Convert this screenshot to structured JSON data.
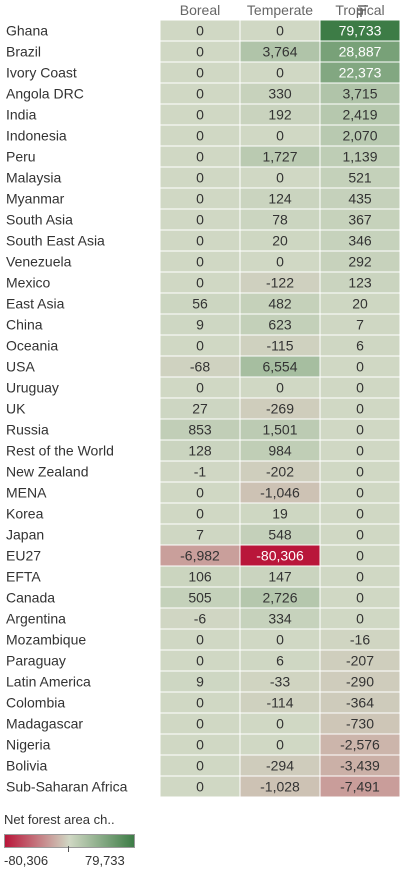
{
  "chart_data": {
    "type": "heatmap",
    "columns": [
      "Boreal",
      "Temperate",
      "Tropical"
    ],
    "rows": [
      {
        "name": "Ghana",
        "values": [
          0,
          0,
          79733
        ]
      },
      {
        "name": "Brazil",
        "values": [
          0,
          3764,
          28887
        ]
      },
      {
        "name": "Ivory Coast",
        "values": [
          0,
          0,
          22373
        ]
      },
      {
        "name": "Angola DRC",
        "values": [
          0,
          330,
          3715
        ]
      },
      {
        "name": "India",
        "values": [
          0,
          192,
          2419
        ]
      },
      {
        "name": "Indonesia",
        "values": [
          0,
          0,
          2070
        ]
      },
      {
        "name": "Peru",
        "values": [
          0,
          1727,
          1139
        ]
      },
      {
        "name": "Malaysia",
        "values": [
          0,
          0,
          521
        ]
      },
      {
        "name": "Myanmar",
        "values": [
          0,
          124,
          435
        ]
      },
      {
        "name": "South Asia",
        "values": [
          0,
          78,
          367
        ]
      },
      {
        "name": "South East Asia",
        "values": [
          0,
          20,
          346
        ]
      },
      {
        "name": "Venezuela",
        "values": [
          0,
          0,
          292
        ]
      },
      {
        "name": "Mexico",
        "values": [
          0,
          -122,
          123
        ]
      },
      {
        "name": "East Asia",
        "values": [
          56,
          482,
          20
        ]
      },
      {
        "name": "China",
        "values": [
          9,
          623,
          7
        ]
      },
      {
        "name": "Oceania",
        "values": [
          0,
          -115,
          6
        ]
      },
      {
        "name": "USA",
        "values": [
          -68,
          6554,
          0
        ]
      },
      {
        "name": "Uruguay",
        "values": [
          0,
          0,
          0
        ]
      },
      {
        "name": "UK",
        "values": [
          27,
          -269,
          0
        ]
      },
      {
        "name": "Russia",
        "values": [
          853,
          1501,
          0
        ]
      },
      {
        "name": "Rest of the World",
        "values": [
          128,
          984,
          0
        ]
      },
      {
        "name": "New Zealand",
        "values": [
          -1,
          -202,
          0
        ]
      },
      {
        "name": "MENA",
        "values": [
          0,
          -1046,
          0
        ]
      },
      {
        "name": "Korea",
        "values": [
          0,
          19,
          0
        ]
      },
      {
        "name": "Japan",
        "values": [
          7,
          548,
          0
        ]
      },
      {
        "name": "EU27",
        "values": [
          -6982,
          -80306,
          0
        ]
      },
      {
        "name": "EFTA",
        "values": [
          106,
          147,
          0
        ]
      },
      {
        "name": "Canada",
        "values": [
          505,
          2726,
          0
        ]
      },
      {
        "name": "Argentina",
        "values": [
          -6,
          334,
          0
        ]
      },
      {
        "name": "Mozambique",
        "values": [
          0,
          0,
          -16
        ]
      },
      {
        "name": "Paraguay",
        "values": [
          0,
          6,
          -207
        ]
      },
      {
        "name": "Latin America",
        "values": [
          9,
          -33,
          -290
        ]
      },
      {
        "name": "Colombia",
        "values": [
          0,
          -114,
          -364
        ]
      },
      {
        "name": "Madagascar",
        "values": [
          0,
          0,
          -730
        ]
      },
      {
        "name": "Nigeria",
        "values": [
          0,
          0,
          -2576
        ]
      },
      {
        "name": "Bolivia",
        "values": [
          0,
          -294,
          -3439
        ]
      },
      {
        "name": "Sub-Saharan Africa",
        "values": [
          0,
          -1028,
          -7491
        ]
      }
    ],
    "legend": {
      "title": "Net forest area ch..",
      "min": -80306,
      "max": 79733,
      "min_label": "-80,306",
      "max_label": "79,733",
      "placement": "bottom-left"
    },
    "colors": {
      "negative_end": "#b9163a",
      "neutral": "#d0d8c4",
      "positive_end": "#3d7c46"
    },
    "sorted_by": "Tropical",
    "sort_icon": "sort-descending-icon"
  }
}
